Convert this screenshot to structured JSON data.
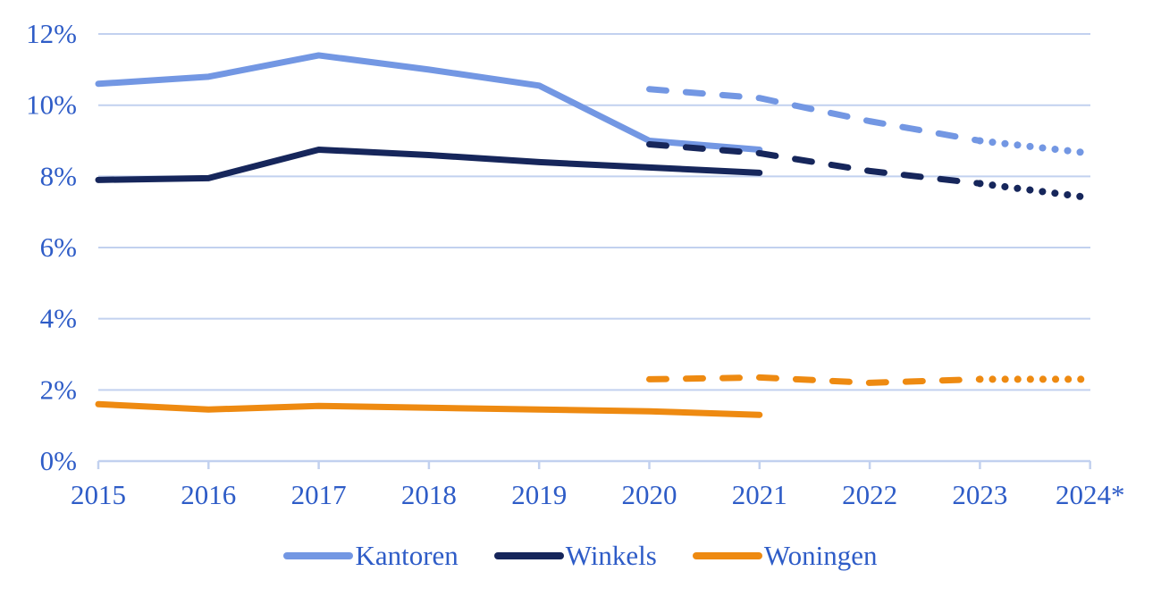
{
  "chart_data": {
    "type": "line",
    "title": "",
    "xlabel": "",
    "ylabel": "",
    "x_labels": [
      "2015",
      "2016",
      "2017",
      "2018",
      "2019",
      "2020",
      "2021",
      "2022",
      "2023",
      "2024*"
    ],
    "y_ticks": [
      0,
      2,
      4,
      6,
      8,
      10,
      12
    ],
    "y_tick_labels": [
      "0%",
      "2%",
      "4%",
      "6%",
      "8%",
      "10%",
      "12%"
    ],
    "ylim": [
      0,
      12
    ],
    "grid": true,
    "legend_position": "bottom",
    "axis_color": "#C2D1EF",
    "text_color": "#2E5CC7",
    "series": [
      {
        "name": "Kantoren",
        "color": "#7397E3",
        "segments": [
          {
            "style": "solid",
            "years": [
              2015,
              2016,
              2017,
              2018,
              2019,
              2020,
              2021
            ],
            "values": [
              10.6,
              10.8,
              11.4,
              11.0,
              10.55,
              9.0,
              8.75
            ]
          },
          {
            "style": "dashed",
            "years": [
              2020,
              2021,
              2022,
              2023
            ],
            "values": [
              10.45,
              10.2,
              9.55,
              9.0
            ]
          },
          {
            "style": "dotted",
            "years": [
              2023,
              2024
            ],
            "values": [
              9.0,
              8.65
            ]
          }
        ]
      },
      {
        "name": "Winkels",
        "color": "#16265B",
        "segments": [
          {
            "style": "solid",
            "years": [
              2015,
              2016,
              2017,
              2018,
              2019,
              2020,
              2021
            ],
            "values": [
              7.9,
              7.95,
              8.75,
              8.6,
              8.4,
              8.25,
              8.1
            ]
          },
          {
            "style": "dashed",
            "years": [
              2020,
              2021,
              2022,
              2023
            ],
            "values": [
              8.9,
              8.65,
              8.15,
              7.8
            ]
          },
          {
            "style": "dotted",
            "years": [
              2023,
              2024
            ],
            "values": [
              7.8,
              7.4
            ]
          }
        ]
      },
      {
        "name": "Woningen",
        "color": "#EE8A11",
        "segments": [
          {
            "style": "solid",
            "years": [
              2015,
              2016,
              2017,
              2018,
              2019,
              2020,
              2021
            ],
            "values": [
              1.6,
              1.45,
              1.55,
              1.5,
              1.45,
              1.4,
              1.3
            ]
          },
          {
            "style": "dashed",
            "years": [
              2020,
              2021,
              2022,
              2023
            ],
            "values": [
              2.3,
              2.35,
              2.2,
              2.3
            ]
          },
          {
            "style": "dotted",
            "years": [
              2023,
              2024
            ],
            "values": [
              2.3,
              2.3
            ]
          }
        ]
      }
    ]
  }
}
